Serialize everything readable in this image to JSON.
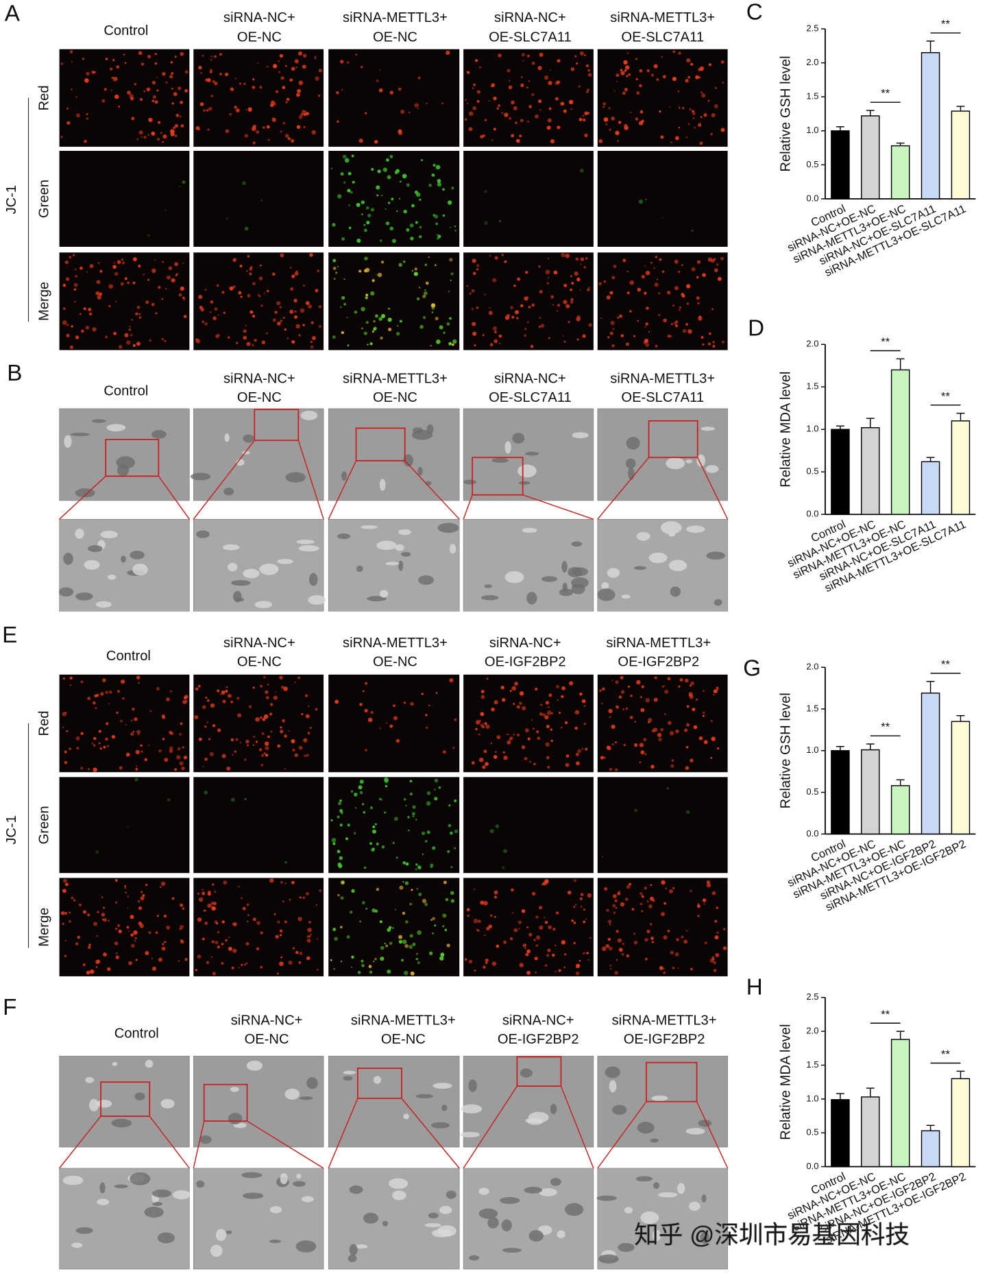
{
  "figure": {
    "panel_labels": [
      "A",
      "B",
      "C",
      "D",
      "E",
      "F",
      "G",
      "H"
    ],
    "headers_slc": [
      [
        "Control"
      ],
      [
        "siRNA-NC+",
        "OE-NC"
      ],
      [
        "siRNA-METTL3+",
        "OE-NC"
      ],
      [
        "siRNA-NC+",
        "OE-SLC7A11"
      ],
      [
        "siRNA-METTL3+",
        "OE-SLC7A11"
      ]
    ],
    "headers_igf": [
      [
        "Control"
      ],
      [
        "siRNA-NC+",
        "OE-NC"
      ],
      [
        "siRNA-METTL3+",
        "OE-NC"
      ],
      [
        "siRNA-NC+",
        "OE-IGF2BP2"
      ],
      [
        "siRNA-METTL3+",
        "OE-IGF2BP2"
      ]
    ],
    "jc1_label": "JC-1",
    "jc1_rows": [
      "Red",
      "Green",
      "Merge"
    ],
    "watermark": "知乎 @深圳市易基因科技"
  },
  "chart_data": [
    {
      "type": "bar",
      "ylabel": "Relative GSH level",
      "categories": [
        "Control",
        "siRNA-NC+OE-NC",
        "siRNA-METTL3+OE-NC",
        "siRNA-NC+OE-SLC7A11",
        "siRNA-METTL3+OE-SLC7A11"
      ],
      "values": [
        1.0,
        1.22,
        0.78,
        2.15,
        1.29
      ],
      "errors": [
        0.06,
        0.08,
        0.04,
        0.17,
        0.07
      ],
      "colors": [
        "#000000",
        "#d3d3d3",
        "#c8f5bf",
        "#c7d9f5",
        "#fdfbd6"
      ],
      "ylim": [
        0,
        2.5
      ],
      "yticks": [
        {
          "value": 0,
          "label": "0.0"
        },
        0.5,
        {
          "value": 1,
          "label": "1.0"
        },
        1.5,
        {
          "value": 2,
          "label": "2.0"
        },
        2.5
      ],
      "annotations": [
        "**",
        "**"
      ]
    },
    {
      "type": "bar",
      "ylabel": "Relative MDA level",
      "categories": [
        "Control",
        "siRNA-NC+OE-NC",
        "siRNA-METTL3+OE-NC",
        "siRNA-NC+OE-SLC7A11",
        "siRNA-METTL3+OE-SLC7A11"
      ],
      "values": [
        1.0,
        1.02,
        1.7,
        0.62,
        1.1
      ],
      "errors": [
        0.04,
        0.11,
        0.13,
        0.05,
        0.09
      ],
      "colors": [
        "#000000",
        "#d3d3d3",
        "#c8f5bf",
        "#c7d9f5",
        "#fdfbd6"
      ],
      "ylim": [
        0,
        2
      ],
      "yticks": [
        {
          "value": 0,
          "label": "0.0"
        },
        0.5,
        {
          "value": 1,
          "label": "1.0"
        },
        1.5,
        {
          "value": 2,
          "label": "2.0"
        }
      ],
      "annotations": [
        "**",
        "**"
      ]
    },
    {
      "type": "bar",
      "ylabel": "Relative GSH level",
      "categories": [
        "Control",
        "siRNA-NC+OE-NC",
        "siRNA-METTL3+OE-NC",
        "siRNA-NC+OE-IGF2BP2",
        "siRNA-METTL3+OE-IGF2BP2"
      ],
      "values": [
        1.0,
        1.01,
        0.58,
        1.69,
        1.35
      ],
      "errors": [
        0.05,
        0.07,
        0.07,
        0.14,
        0.07
      ],
      "colors": [
        "#000000",
        "#d3d3d3",
        "#c8f5bf",
        "#c7d9f5",
        "#fdfbd6"
      ],
      "ylim": [
        0,
        2
      ],
      "yticks": [
        {
          "value": 0,
          "label": "0.0"
        },
        0.5,
        {
          "value": 1,
          "label": "1.0"
        },
        1.5,
        {
          "value": 2,
          "label": "2.0"
        }
      ],
      "annotations": [
        "**",
        "**"
      ]
    },
    {
      "type": "bar",
      "ylabel": "Relative MDA level",
      "categories": [
        "Control",
        "siRNA-NC+OE-NC",
        "siRNA-METTL3+OE-NC",
        "siRNA-NC+OE-IGF2BP2",
        "siRNA-METTL3+OE-IGF2BP2"
      ],
      "values": [
        0.99,
        1.03,
        1.88,
        0.53,
        1.3
      ],
      "errors": [
        0.09,
        0.13,
        0.12,
        0.08,
        0.11
      ],
      "colors": [
        "#000000",
        "#d3d3d3",
        "#c8f5bf",
        "#c7d9f5",
        "#fdfbd6"
      ],
      "ylim": [
        0,
        2.5
      ],
      "yticks": [
        {
          "value": 0,
          "label": "0.0"
        },
        0.5,
        {
          "value": 1,
          "label": "1.0"
        },
        1.5,
        {
          "value": 2,
          "label": "2.0"
        },
        2.5
      ],
      "annotations": [
        "**",
        "**"
      ]
    }
  ]
}
